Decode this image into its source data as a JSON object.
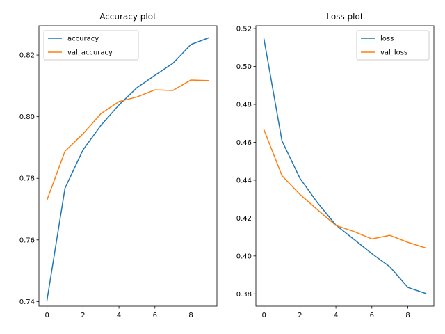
{
  "chart_data": [
    {
      "type": "line",
      "title": "Accuracy plot",
      "xlabel": "",
      "ylabel": "",
      "x": [
        0,
        1,
        2,
        3,
        4,
        5,
        6,
        7,
        8,
        9
      ],
      "xlim": [
        -0.45,
        9.45
      ],
      "ylim": [
        0.7385,
        0.8295
      ],
      "xticks": [
        0,
        2,
        4,
        6,
        8
      ],
      "yticks": [
        0.74,
        0.76,
        0.78,
        0.8,
        0.82
      ],
      "ytick_labels": [
        "0.74",
        "0.76",
        "0.78",
        "0.80",
        "0.82"
      ],
      "grid": false,
      "legend_position": "upper-left",
      "series": [
        {
          "name": "accuracy",
          "color": "#1f77b4",
          "values": [
            0.7405,
            0.7768,
            0.7892,
            0.7972,
            0.8038,
            0.8094,
            0.8134,
            0.8173,
            0.8234,
            0.8256
          ]
        },
        {
          "name": "val_accuracy",
          "color": "#ff7f0e",
          "values": [
            0.773,
            0.7888,
            0.7944,
            0.801,
            0.8049,
            0.8064,
            0.8087,
            0.8085,
            0.8119,
            0.8117
          ]
        }
      ]
    },
    {
      "type": "line",
      "title": "Loss plot",
      "xlabel": "",
      "ylabel": "",
      "x": [
        0,
        1,
        2,
        3,
        4,
        5,
        6,
        7,
        8,
        9
      ],
      "xlim": [
        -0.45,
        9.45
      ],
      "ylim": [
        0.3735,
        0.5215
      ],
      "xticks": [
        0,
        2,
        4,
        6,
        8
      ],
      "yticks": [
        0.38,
        0.4,
        0.42,
        0.44,
        0.46,
        0.48,
        0.5,
        0.52
      ],
      "ytick_labels": [
        "0.38",
        "0.40",
        "0.42",
        "0.44",
        "0.46",
        "0.48",
        "0.50",
        "0.52"
      ],
      "grid": false,
      "legend_position": "upper-right",
      "series": [
        {
          "name": "loss",
          "color": "#1f77b4",
          "values": [
            0.5145,
            0.4608,
            0.441,
            0.4278,
            0.4163,
            0.4088,
            0.4012,
            0.3943,
            0.3834,
            0.3802
          ]
        },
        {
          "name": "val_loss",
          "color": "#ff7f0e",
          "values": [
            0.4666,
            0.4424,
            0.4325,
            0.4242,
            0.4161,
            0.4129,
            0.409,
            0.4109,
            0.4072,
            0.4042
          ]
        }
      ]
    }
  ]
}
